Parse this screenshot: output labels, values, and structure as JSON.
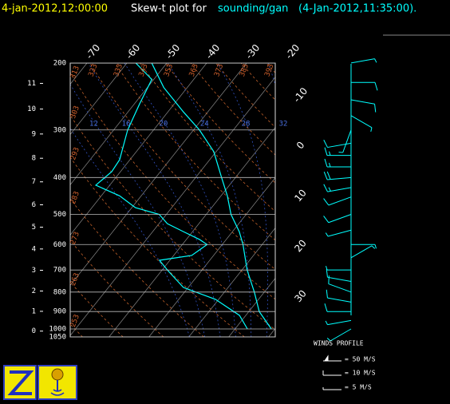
{
  "chart_data": {
    "type": "skewt",
    "title_time": "4-jan-2012,12:00:00",
    "title_prefix": "Skew-t plot for",
    "title_source": "sounding/gan",
    "title_obs": "(4-Jan-2012,11:35:00).",
    "ylim": [
      1050,
      200
    ],
    "yticks": [
      200,
      300,
      400,
      500,
      600,
      700,
      800,
      900,
      1000,
      1050
    ],
    "xlim": [
      -74.2,
      -22.8
    ],
    "xticks": [
      -70,
      -60,
      -50,
      -40,
      -30,
      -20,
      -10,
      0,
      10,
      20,
      30
    ],
    "height_ticks": [
      0,
      1,
      2,
      3,
      4,
      5,
      6,
      7,
      8,
      9,
      10,
      11
    ],
    "dry_adiabats": [
      253,
      263,
      273,
      283,
      293,
      303,
      313,
      323,
      333,
      343,
      353,
      363,
      373,
      383,
      393
    ],
    "moist_adiabats": [
      8,
      12,
      16,
      20,
      24,
      28,
      32
    ],
    "series": [
      {
        "color": "#00ffff",
        "pressure": [
          200,
          232,
          269,
          300,
          342,
          400,
          447,
          500,
          555,
          600,
          700,
          800,
          900,
          1000
        ],
        "values": [
          -53.8,
          -45.9,
          -36.1,
          -28.5,
          -20.6,
          -13.5,
          -8.4,
          -3.8,
          1.7,
          5.2,
          11.3,
          17.5,
          22.6,
          29.1
        ]
      },
      {
        "color": "#00ffff",
        "pressure": [
          200,
          221,
          256,
          300,
          359,
          386,
          419,
          447,
          480,
          500,
          529,
          555,
          582,
          600,
          641,
          660,
          700,
          778,
          836,
          921,
          1000
        ],
        "values": [
          -57.8,
          -50.5,
          -48.7,
          -46.5,
          -42.6,
          -42.2,
          -43.5,
          -35.4,
          -29.1,
          -21.8,
          -17.9,
          -12.3,
          -6.7,
          -3.8,
          -5.5,
          -12.6,
          -8.7,
          -1.2,
          9.2,
          18.4,
          23.1
        ]
      }
    ],
    "winds": [
      {
        "pressure": 200,
        "direction": 80,
        "speed": 8
      },
      {
        "pressure": 225,
        "direction": 90,
        "speed": 10
      },
      {
        "pressure": 250,
        "direction": 100,
        "speed": 12
      },
      {
        "pressure": 275,
        "direction": 120,
        "speed": 8
      },
      {
        "pressure": 300,
        "direction": 200,
        "speed": 5
      },
      {
        "pressure": 325,
        "direction": 260,
        "speed": 10
      },
      {
        "pressure": 350,
        "direction": 270,
        "speed": 15
      },
      {
        "pressure": 375,
        "direction": 270,
        "speed": 18
      },
      {
        "pressure": 400,
        "direction": 265,
        "speed": 20
      },
      {
        "pressure": 425,
        "direction": 260,
        "speed": 15
      },
      {
        "pressure": 450,
        "direction": 250,
        "speed": 12
      },
      {
        "pressure": 500,
        "direction": 250,
        "speed": 10
      },
      {
        "pressure": 550,
        "direction": 255,
        "speed": 8
      },
      {
        "pressure": 600,
        "direction": 90,
        "speed": 8
      },
      {
        "pressure": 650,
        "direction": 60,
        "speed": 5
      },
      {
        "pressure": 700,
        "direction": 270,
        "speed": 8
      },
      {
        "pressure": 750,
        "direction": 280,
        "speed": 10
      },
      {
        "pressure": 800,
        "direction": 290,
        "speed": 12
      },
      {
        "pressure": 850,
        "direction": 280,
        "speed": 14
      },
      {
        "pressure": 900,
        "direction": 270,
        "speed": 12
      },
      {
        "pressure": 950,
        "direction": 260,
        "speed": 8
      },
      {
        "pressure": 1000,
        "direction": 240,
        "speed": 5
      }
    ],
    "wind_legend": {
      "title": "WINDS PROFILE",
      "items": [
        "= 50 M/S",
        "= 10 M/S",
        "= 5 M/S"
      ]
    }
  }
}
